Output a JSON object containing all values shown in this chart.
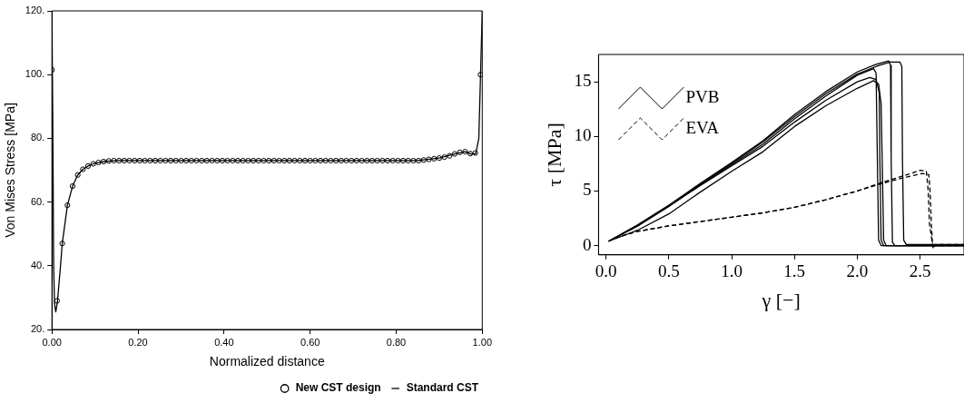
{
  "chart_data": [
    {
      "type": "line",
      "xlabel": "Normalized distance",
      "ylabel": "Von Mises Stress [MPa]",
      "xlim": [
        0,
        1
      ],
      "ylim": [
        20,
        120
      ],
      "xticks": [
        {
          "value": 0,
          "label": "0.00"
        },
        {
          "value": 0.2,
          "label": "0.20"
        },
        {
          "value": 0.4,
          "label": "0.40"
        },
        {
          "value": 0.6,
          "label": "0.60"
        },
        {
          "value": 0.8,
          "label": "0.80"
        },
        {
          "value": 1,
          "label": "1.00"
        }
      ],
      "yticks": [
        {
          "value": 20,
          "label": "20."
        },
        {
          "value": 40,
          "label": "40."
        },
        {
          "value": 60,
          "label": "60."
        },
        {
          "value": 80,
          "label": "80."
        },
        {
          "value": 100,
          "label": "100."
        },
        {
          "value": 120,
          "label": "120."
        }
      ],
      "grid": false,
      "legend": "bottom right",
      "series": [
        {
          "name": "New CST design",
          "type": "scatter",
          "marker": "circle",
          "color": "#000000",
          "x": [
            0,
            0.012,
            0.024,
            0.036,
            0.048,
            0.06,
            0.072,
            0.084,
            0.096,
            0.108,
            0.12,
            0.132,
            0.144,
            0.156,
            0.168,
            0.18,
            0.192,
            0.204,
            0.216,
            0.228,
            0.24,
            0.252,
            0.264,
            0.276,
            0.288,
            0.3,
            0.312,
            0.324,
            0.336,
            0.348,
            0.36,
            0.372,
            0.384,
            0.396,
            0.408,
            0.42,
            0.432,
            0.444,
            0.456,
            0.468,
            0.48,
            0.492,
            0.504,
            0.516,
            0.528,
            0.54,
            0.552,
            0.564,
            0.576,
            0.588,
            0.6,
            0.612,
            0.624,
            0.636,
            0.648,
            0.66,
            0.672,
            0.684,
            0.696,
            0.708,
            0.72,
            0.732,
            0.744,
            0.756,
            0.768,
            0.78,
            0.792,
            0.804,
            0.816,
            0.828,
            0.84,
            0.852,
            0.864,
            0.876,
            0.888,
            0.9,
            0.912,
            0.924,
            0.936,
            0.948,
            0.96,
            0.972,
            0.984,
            0.996
          ],
          "values": [
            101.5,
            29,
            47,
            59,
            65,
            68.5,
            70.3,
            71.3,
            72,
            72.4,
            72.7,
            72.9,
            73,
            73,
            73,
            73,
            73,
            73,
            73,
            73,
            73,
            73,
            73,
            73,
            73,
            73,
            73,
            73,
            73,
            73,
            73,
            73,
            73,
            73,
            73,
            73,
            73,
            73,
            73,
            73,
            73,
            73,
            73,
            73,
            73,
            73,
            73,
            73,
            73,
            73,
            73,
            73,
            73,
            73,
            73,
            73,
            73,
            73,
            73,
            73,
            73,
            73,
            73,
            73,
            73,
            73,
            73,
            73,
            73,
            73,
            73,
            73,
            73.2,
            73.4,
            73.6,
            73.8,
            74.1,
            74.5,
            75.1,
            75.6,
            75.8,
            75.2,
            75.4,
            100
          ]
        },
        {
          "name": "Standard CST",
          "marker": "none",
          "line_style": "solid",
          "color": "#000000",
          "x": [
            0,
            0.002,
            0.004,
            0.006,
            0.009,
            0.013,
            0.02,
            0.024,
            0.036,
            0.048,
            0.06,
            0.072,
            0.084,
            0.096,
            0.12,
            0.15,
            0.2,
            0.5,
            0.85,
            0.9,
            0.936,
            0.96,
            0.975,
            0.985,
            0.992,
            0.996,
            1.0
          ],
          "values": [
            119,
            85,
            40,
            28,
            25.5,
            29,
            40,
            47,
            59,
            65,
            68.5,
            70.3,
            71.3,
            72,
            72.7,
            73,
            73,
            73,
            73,
            73.8,
            75.1,
            75.8,
            75,
            75.2,
            80,
            100,
            120
          ]
        }
      ]
    },
    {
      "type": "line",
      "xlabel": "γ [−]",
      "ylabel": "τ [MPa]",
      "xlim": [
        -0.06,
        2.85
      ],
      "ylim": [
        -0.85,
        17.5
      ],
      "xticks": [
        {
          "value": 0,
          "label": "0.0"
        },
        {
          "value": 0.5,
          "label": "0.5"
        },
        {
          "value": 1,
          "label": "1.0"
        },
        {
          "value": 1.5,
          "label": "1.5"
        },
        {
          "value": 2,
          "label": "2.0"
        },
        {
          "value": 2.5,
          "label": "2.5"
        }
      ],
      "yticks": [
        0,
        5,
        10,
        15
      ],
      "grid": false,
      "legend": "top left",
      "marker": "none",
      "series": [
        {
          "name": "PVB",
          "color": "#000000",
          "line_style": "solid",
          "x": [
            0.02,
            0.25,
            0.5,
            0.75,
            1.0,
            1.25,
            1.5,
            1.75,
            2.0,
            2.15,
            2.25,
            2.265,
            2.27,
            2.28,
            2.3,
            2.85
          ],
          "values": [
            0.4,
            1.9,
            3.7,
            5.7,
            7.6,
            9.6,
            12.0,
            14.1,
            15.9,
            16.6,
            16.9,
            16.5,
            8,
            0.3,
            0,
            0
          ]
        },
        {
          "color": "#000000",
          "line_style": "solid",
          "x": [
            0.02,
            0.25,
            0.5,
            0.75,
            1.0,
            1.25,
            1.5,
            1.75,
            2.0,
            2.15,
            2.26,
            2.34,
            2.355,
            2.36,
            2.37,
            2.39,
            2.85
          ],
          "values": [
            0.4,
            1.8,
            3.6,
            5.6,
            7.5,
            9.5,
            11.8,
            13.9,
            15.7,
            16.4,
            16.8,
            16.8,
            16.4,
            8,
            0.5,
            0.1,
            0.1
          ]
        },
        {
          "color": "#000000",
          "line_style": "solid",
          "x": [
            0.02,
            0.25,
            0.5,
            0.75,
            1.0,
            1.25,
            1.5,
            1.75,
            2.0,
            2.13,
            2.15,
            2.16,
            2.17,
            2.19,
            2.85
          ],
          "values": [
            0.4,
            1.8,
            3.6,
            5.6,
            7.4,
            9.3,
            11.6,
            13.7,
            15.6,
            16.2,
            15.8,
            8,
            0.5,
            0,
            0
          ]
        },
        {
          "color": "#000000",
          "line_style": "solid",
          "x": [
            0.02,
            0.25,
            0.5,
            0.75,
            1.0,
            1.25,
            1.5,
            1.75,
            2.0,
            2.1,
            2.15,
            2.175,
            2.18,
            2.19,
            2.21,
            2.85
          ],
          "values": [
            0.4,
            1.8,
            3.6,
            5.5,
            7.3,
            9.1,
            11.3,
            13.3,
            15.0,
            15.4,
            15.2,
            14,
            8,
            0.5,
            0,
            0
          ]
        },
        {
          "color": "#000000",
          "line_style": "solid",
          "x": [
            0.02,
            0.25,
            0.5,
            0.75,
            1.0,
            1.25,
            1.5,
            1.75,
            2.0,
            2.13,
            2.17,
            2.19,
            2.2,
            2.21,
            2.23,
            2.85
          ],
          "values": [
            0.4,
            1.4,
            2.9,
            4.9,
            6.8,
            8.6,
            10.9,
            12.8,
            14.4,
            15.1,
            14.8,
            13,
            7,
            0.5,
            0,
            0
          ]
        },
        {
          "name": "EVA",
          "color": "#000000",
          "line_style": "dashed",
          "x": [
            0.02,
            0.1,
            0.25,
            0.5,
            0.75,
            1.0,
            1.25,
            1.5,
            1.75,
            2.0,
            2.2,
            2.4,
            2.5,
            2.55,
            2.565,
            2.575,
            2.6,
            2.605,
            2.62,
            2.85
          ],
          "values": [
            0.4,
            0.8,
            1.3,
            1.8,
            2.2,
            2.6,
            3.0,
            3.5,
            4.2,
            5.0,
            5.8,
            6.5,
            6.9,
            6.8,
            5,
            2,
            0,
            -0.3,
            0.1,
            0.1
          ]
        },
        {
          "color": "#000000",
          "line_style": "dashed",
          "x": [
            0.02,
            0.1,
            0.25,
            0.5,
            0.75,
            1.0,
            1.25,
            1.5,
            1.75,
            2.0,
            2.2,
            2.4,
            2.52,
            2.57,
            2.58,
            2.59,
            2.6,
            2.62,
            2.85
          ],
          "values": [
            0.4,
            0.8,
            1.3,
            1.8,
            2.2,
            2.6,
            3.0,
            3.5,
            4.2,
            5.0,
            5.7,
            6.3,
            6.6,
            6.5,
            5,
            2,
            0,
            0,
            0
          ]
        }
      ]
    }
  ]
}
